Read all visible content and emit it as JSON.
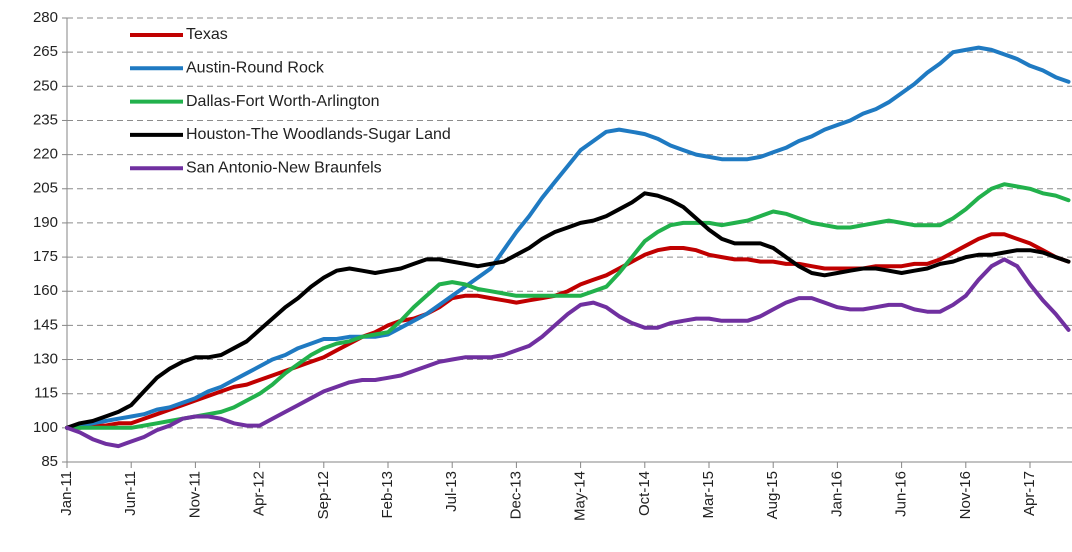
{
  "chart_data": {
    "type": "line",
    "categories": [
      "Jan-11",
      null,
      null,
      null,
      null,
      "Jun-11",
      null,
      null,
      null,
      null,
      "Nov-11",
      null,
      null,
      null,
      null,
      "Apr-12",
      null,
      null,
      null,
      null,
      "Sep-12",
      null,
      null,
      null,
      null,
      "Feb-13",
      null,
      null,
      null,
      null,
      "Jul-13",
      null,
      null,
      null,
      null,
      "Dec-13",
      null,
      null,
      null,
      null,
      "May-14",
      null,
      null,
      null,
      null,
      "Oct-14",
      null,
      null,
      null,
      null,
      "Mar-15",
      null,
      null,
      null,
      null,
      "Aug-15",
      null,
      null,
      null,
      null,
      "Jan-16",
      null,
      null,
      null,
      null,
      "Jun-16",
      null,
      null,
      null,
      null,
      "Nov-16",
      null,
      null,
      null,
      null,
      "Apr-17",
      null,
      null,
      null
    ],
    "series": [
      {
        "name": "Texas",
        "color": "#c00000",
        "values": [
          100,
          100,
          101,
          101,
          102,
          102,
          104,
          106,
          108,
          110,
          112,
          114,
          116,
          118,
          119,
          121,
          123,
          125,
          127,
          129,
          131,
          134,
          137,
          140,
          142,
          145,
          147,
          148,
          150,
          153,
          157,
          158,
          158,
          157,
          156,
          155,
          156,
          157,
          158,
          160,
          163,
          165,
          167,
          170,
          173,
          176,
          178,
          179,
          179,
          178,
          176,
          175,
          174,
          174,
          173,
          173,
          172,
          172,
          171,
          170,
          170,
          170,
          170,
          171,
          171,
          171,
          172,
          172,
          174,
          177,
          180,
          183,
          185,
          185,
          183,
          181,
          178,
          175,
          173
        ]
      },
      {
        "name": "Austin-Round Rock",
        "color": "#1f7ac2",
        "values": [
          100,
          101,
          102,
          103,
          104,
          105,
          106,
          108,
          109,
          111,
          113,
          116,
          118,
          121,
          124,
          127,
          130,
          132,
          135,
          137,
          139,
          139,
          140,
          140,
          140,
          141,
          144,
          147,
          150,
          154,
          158,
          162,
          166,
          170,
          178,
          186,
          193,
          201,
          208,
          215,
          222,
          226,
          230,
          231,
          230,
          229,
          227,
          224,
          222,
          220,
          219,
          218,
          218,
          218,
          219,
          221,
          223,
          226,
          228,
          231,
          233,
          235,
          238,
          240,
          243,
          247,
          251,
          256,
          260,
          265,
          266,
          267,
          266,
          264,
          262,
          259,
          257,
          254,
          252
        ]
      },
      {
        "name": "Dallas-Fort Worth-Arlington",
        "color": "#22b14c",
        "values": [
          100,
          100,
          100,
          100,
          100,
          100,
          101,
          102,
          103,
          104,
          105,
          106,
          107,
          109,
          112,
          115,
          119,
          124,
          128,
          132,
          135,
          137,
          138,
          140,
          141,
          142,
          147,
          153,
          158,
          163,
          164,
          163,
          161,
          160,
          159,
          158,
          158,
          158,
          158,
          158,
          158,
          160,
          162,
          168,
          175,
          182,
          186,
          189,
          190,
          190,
          190,
          189,
          190,
          191,
          193,
          195,
          194,
          192,
          190,
          189,
          188,
          188,
          189,
          190,
          191,
          190,
          189,
          189,
          189,
          192,
          196,
          201,
          205,
          207,
          206,
          205,
          203,
          202,
          200
        ]
      },
      {
        "name": "Houston-The Woodlands-Sugar Land",
        "color": "#000000",
        "values": [
          100,
          102,
          103,
          105,
          107,
          110,
          116,
          122,
          126,
          129,
          131,
          131,
          132,
          135,
          138,
          143,
          148,
          153,
          157,
          162,
          166,
          169,
          170,
          169,
          168,
          169,
          170,
          172,
          174,
          174,
          173,
          172,
          171,
          172,
          173,
          176,
          179,
          183,
          186,
          188,
          190,
          191,
          193,
          196,
          199,
          203,
          202,
          200,
          197,
          192,
          187,
          183,
          181,
          181,
          181,
          179,
          175,
          171,
          168,
          167,
          168,
          169,
          170,
          170,
          169,
          168,
          169,
          170,
          172,
          173,
          175,
          176,
          176,
          177,
          178,
          178,
          177,
          175,
          173
        ]
      },
      {
        "name": "San Antonio-New Braunfels",
        "color": "#7030a0",
        "values": [
          100,
          98,
          95,
          93,
          92,
          94,
          96,
          99,
          101,
          104,
          105,
          105,
          104,
          102,
          101,
          101,
          104,
          107,
          110,
          113,
          116,
          118,
          120,
          121,
          121,
          122,
          123,
          125,
          127,
          129,
          130,
          131,
          131,
          131,
          132,
          134,
          136,
          140,
          145,
          150,
          154,
          155,
          153,
          149,
          146,
          144,
          144,
          146,
          147,
          148,
          148,
          147,
          147,
          147,
          149,
          152,
          155,
          157,
          157,
          155,
          153,
          152,
          152,
          153,
          154,
          154,
          152,
          151,
          151,
          154,
          158,
          165,
          171,
          174,
          171,
          163,
          156,
          150,
          143
        ]
      }
    ],
    "ylim": [
      85,
      280
    ],
    "yticks": [
      85,
      100,
      115,
      130,
      145,
      160,
      175,
      190,
      205,
      220,
      235,
      250,
      265,
      280
    ],
    "grid": true,
    "legend": "top-left"
  }
}
